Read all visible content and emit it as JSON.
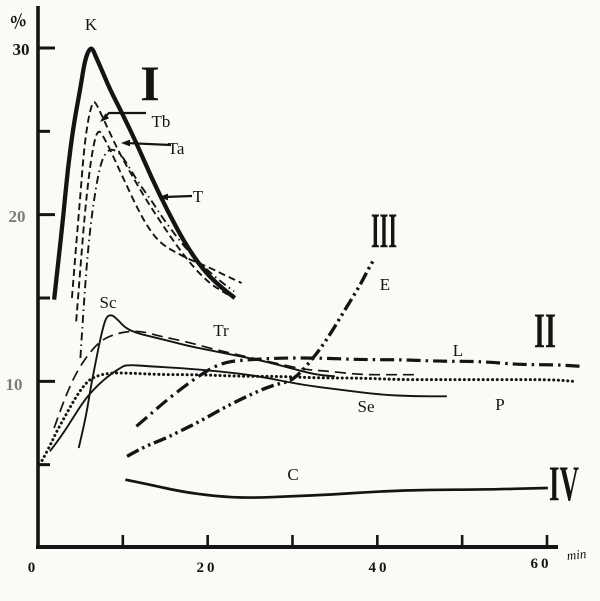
{
  "figure": {
    "background": "#fbfaf6",
    "ink": "#141414",
    "title": ""
  },
  "axis": {
    "y_unit_label": "%",
    "x_unit_label": "min",
    "y_labels": [
      {
        "value": 30,
        "text": "30"
      },
      {
        "value": 20,
        "text": "20"
      },
      {
        "value": 10,
        "text": "10"
      }
    ],
    "x_labels": [
      {
        "value": 0,
        "text": "0"
      },
      {
        "value": 20,
        "text": "20"
      },
      {
        "value": 40,
        "text": "40"
      },
      {
        "value": 60,
        "text": "60"
      }
    ]
  },
  "curve_labels": {
    "K": "K",
    "Tb": "Tb",
    "Ta": "Ta",
    "T": "T",
    "Sc": "Sc",
    "Tr": "Tr",
    "Se": "Se",
    "P": "P",
    "L": "L",
    "E": "E",
    "C": "C"
  },
  "group_numerals": {
    "g1": "I",
    "g2": "II",
    "g3": "III",
    "g4": "IV"
  },
  "chart_data": {
    "type": "line",
    "title": "",
    "xlabel": "min",
    "ylabel": "%",
    "xlim": [
      0,
      61
    ],
    "ylim": [
      0,
      31
    ],
    "grid": false,
    "legend": "labels drawn next to curves; roman numerals I–IV mark curve groups",
    "x_ticks": [
      10,
      20,
      30,
      40,
      50,
      60
    ],
    "x_ticks_labeled": [
      0,
      20,
      40,
      60
    ],
    "y_ticks": [
      5,
      10,
      15,
      20,
      25,
      30
    ],
    "y_ticks_labeled": [
      10,
      20,
      30
    ],
    "series": [
      {
        "label": "K",
        "group": "I",
        "line": "bold-solid",
        "points": [
          [
            1.9,
            14.9
          ],
          [
            2.4,
            17.2
          ],
          [
            3.0,
            20.0
          ],
          [
            3.5,
            22.7
          ],
          [
            4.2,
            25.4
          ],
          [
            5.0,
            27.6
          ],
          [
            5.5,
            29.2
          ],
          [
            6.0,
            29.9
          ],
          [
            6.4,
            30.0
          ],
          [
            6.8,
            29.5
          ],
          [
            7.5,
            28.7
          ],
          [
            8.5,
            27.5
          ],
          [
            9.9,
            26.1
          ],
          [
            11.6,
            24.3
          ],
          [
            13.4,
            22.2
          ],
          [
            15.3,
            20.2
          ],
          [
            17.3,
            18.3
          ],
          [
            19.3,
            16.8
          ],
          [
            21.2,
            15.8
          ],
          [
            23.2,
            15.0
          ]
        ]
      },
      {
        "label": "Tb",
        "group": "I",
        "line": "dashed",
        "points": [
          [
            4.0,
            15.0
          ],
          [
            4.5,
            18.2
          ],
          [
            5.0,
            21.2
          ],
          [
            5.4,
            23.8
          ],
          [
            5.9,
            25.7
          ],
          [
            6.4,
            26.7
          ],
          [
            6.7,
            26.8
          ],
          [
            7.3,
            26.2
          ],
          [
            8.3,
            25.1
          ],
          [
            9.4,
            23.9
          ],
          [
            10.8,
            22.6
          ],
          [
            12.5,
            21.1
          ],
          [
            14.4,
            19.6
          ],
          [
            16.4,
            18.1
          ],
          [
            18.4,
            16.8
          ],
          [
            20.4,
            15.8
          ],
          [
            22.4,
            15.2
          ]
        ]
      },
      {
        "label": "Ta",
        "group": "I",
        "line": "dashed",
        "points": [
          [
            4.5,
            13.6
          ],
          [
            5.0,
            16.8
          ],
          [
            5.5,
            20.0
          ],
          [
            6.1,
            22.8
          ],
          [
            6.7,
            24.6
          ],
          [
            7.2,
            25.1
          ],
          [
            7.8,
            24.6
          ],
          [
            8.5,
            23.9
          ],
          [
            9.4,
            22.9
          ],
          [
            10.5,
            21.7
          ],
          [
            11.7,
            20.4
          ],
          [
            13.0,
            19.2
          ],
          [
            14.4,
            18.3
          ],
          [
            16.0,
            17.8
          ],
          [
            17.9,
            17.3
          ],
          [
            19.9,
            16.9
          ],
          [
            21.9,
            16.4
          ],
          [
            24.0,
            15.9
          ]
        ]
      },
      {
        "label": "T",
        "group": "I",
        "line": "dashdot",
        "points": [
          [
            5.0,
            11.4
          ],
          [
            5.5,
            15.5
          ],
          [
            6.1,
            19.0
          ],
          [
            6.8,
            21.6
          ],
          [
            7.5,
            23.3
          ],
          [
            8.3,
            23.9
          ],
          [
            9.0,
            23.9
          ],
          [
            9.8,
            23.6
          ],
          [
            10.8,
            22.8
          ],
          [
            12.0,
            21.8
          ],
          [
            13.3,
            20.9
          ],
          [
            14.7,
            19.8
          ],
          [
            16.3,
            18.7
          ],
          [
            17.9,
            17.7
          ],
          [
            19.7,
            16.8
          ],
          [
            21.5,
            16.0
          ],
          [
            23.1,
            15.4
          ]
        ]
      },
      {
        "label": "Sc",
        "group": "",
        "line": "thin-solid",
        "points": [
          [
            4.8,
            6.0
          ],
          [
            5.3,
            7.1
          ],
          [
            5.8,
            8.3
          ],
          [
            6.2,
            9.6
          ],
          [
            6.7,
            10.9
          ],
          [
            7.2,
            12.2
          ],
          [
            7.7,
            13.3
          ],
          [
            8.1,
            13.9
          ],
          [
            8.7,
            14.0
          ],
          [
            9.4,
            13.7
          ],
          [
            10.3,
            13.2
          ],
          [
            11.6,
            12.9
          ],
          [
            13.2,
            12.7
          ],
          [
            15.6,
            12.4
          ],
          [
            17.9,
            12.1
          ],
          [
            20.9,
            11.8
          ],
          [
            23.8,
            11.5
          ],
          [
            26.8,
            11.2
          ],
          [
            29.7,
            10.8
          ],
          [
            32.7,
            10.4
          ],
          [
            35.0,
            10.3
          ]
        ]
      },
      {
        "label": "Tr",
        "group": "",
        "line": "long-dashed",
        "points": [
          [
            1.9,
            7.2
          ],
          [
            2.6,
            8.2
          ],
          [
            3.5,
            9.4
          ],
          [
            4.6,
            10.6
          ],
          [
            5.9,
            11.6
          ],
          [
            7.3,
            12.4
          ],
          [
            8.8,
            12.8
          ],
          [
            10.6,
            13.0
          ],
          [
            12.3,
            13.0
          ],
          [
            14.4,
            12.7
          ],
          [
            17.3,
            12.4
          ],
          [
            20.9,
            11.9
          ],
          [
            24.4,
            11.5
          ],
          [
            27.9,
            11.1
          ],
          [
            31.5,
            10.7
          ],
          [
            34.4,
            10.6
          ],
          [
            38.0,
            10.4
          ],
          [
            41.5,
            10.4
          ],
          [
            44.8,
            10.4
          ]
        ]
      },
      {
        "label": "Se",
        "group": "",
        "line": "thin-solid",
        "points": [
          [
            1.4,
            5.8
          ],
          [
            2.6,
            6.6
          ],
          [
            4.0,
            7.7
          ],
          [
            5.5,
            8.9
          ],
          [
            7.1,
            9.8
          ],
          [
            8.5,
            10.4
          ],
          [
            9.7,
            10.8
          ],
          [
            10.4,
            11.0
          ],
          [
            13.2,
            10.9
          ],
          [
            16.7,
            10.8
          ],
          [
            21.5,
            10.6
          ],
          [
            26.2,
            10.3
          ],
          [
            30.9,
            9.8
          ],
          [
            35.6,
            9.5
          ],
          [
            40.3,
            9.2
          ],
          [
            44.4,
            9.1
          ],
          [
            48.2,
            9.1
          ]
        ]
      },
      {
        "label": "P",
        "group": "",
        "line": "dotted",
        "points": [
          [
            0.2,
            5.0
          ],
          [
            1.2,
            5.9
          ],
          [
            2.1,
            6.9
          ],
          [
            3.3,
            8.0
          ],
          [
            4.5,
            9.1
          ],
          [
            5.8,
            10.0
          ],
          [
            6.8,
            10.3
          ],
          [
            8.3,
            10.5
          ],
          [
            10.8,
            10.5
          ],
          [
            14.4,
            10.4
          ],
          [
            19.1,
            10.4
          ],
          [
            23.8,
            10.3
          ],
          [
            28.5,
            10.3
          ],
          [
            33.2,
            10.2
          ],
          [
            38.0,
            10.2
          ],
          [
            42.7,
            10.1
          ],
          [
            47.4,
            10.1
          ],
          [
            52.1,
            10.1
          ],
          [
            56.8,
            10.1
          ],
          [
            60.6,
            10.1
          ],
          [
            63.2,
            10.0
          ]
        ]
      },
      {
        "label": "L",
        "group": "II",
        "line": "bold-dashdot",
        "points": [
          [
            11.6,
            7.3
          ],
          [
            13.2,
            8.0
          ],
          [
            15.0,
            8.8
          ],
          [
            17.0,
            9.6
          ],
          [
            18.9,
            10.3
          ],
          [
            20.8,
            10.9
          ],
          [
            22.6,
            11.2
          ],
          [
            25.0,
            11.3
          ],
          [
            28.5,
            11.4
          ],
          [
            33.2,
            11.4
          ],
          [
            38.0,
            11.3
          ],
          [
            42.7,
            11.3
          ],
          [
            47.4,
            11.2
          ],
          [
            52.1,
            11.2
          ],
          [
            56.8,
            11.0
          ],
          [
            60.9,
            11.0
          ],
          [
            64.0,
            10.9
          ]
        ]
      },
      {
        "label": "E",
        "group": "III",
        "line": "bold-dashdotdot",
        "points": [
          [
            10.5,
            5.5
          ],
          [
            12.6,
            6.1
          ],
          [
            14.7,
            6.5
          ],
          [
            16.7,
            7.0
          ],
          [
            19.1,
            7.6
          ],
          [
            21.5,
            8.3
          ],
          [
            23.8,
            8.9
          ],
          [
            25.9,
            9.4
          ],
          [
            27.9,
            9.8
          ],
          [
            29.7,
            10.0
          ],
          [
            30.9,
            10.5
          ],
          [
            32.1,
            11.2
          ],
          [
            33.2,
            11.9
          ],
          [
            34.4,
            12.8
          ],
          [
            35.6,
            13.8
          ],
          [
            36.8,
            14.8
          ],
          [
            38.0,
            15.8
          ],
          [
            38.9,
            16.7
          ],
          [
            39.7,
            17.4
          ]
        ]
      },
      {
        "label": "C",
        "group": "IV",
        "line": "medium-solid",
        "points": [
          [
            10.3,
            4.1
          ],
          [
            13.2,
            3.8
          ],
          [
            16.7,
            3.4
          ],
          [
            20.9,
            3.1
          ],
          [
            25.0,
            3.0
          ],
          [
            29.7,
            3.1
          ],
          [
            34.4,
            3.2
          ],
          [
            40.3,
            3.4
          ],
          [
            46.2,
            3.5
          ],
          [
            52.1,
            3.5
          ],
          [
            60.1,
            3.6
          ]
        ]
      }
    ]
  }
}
